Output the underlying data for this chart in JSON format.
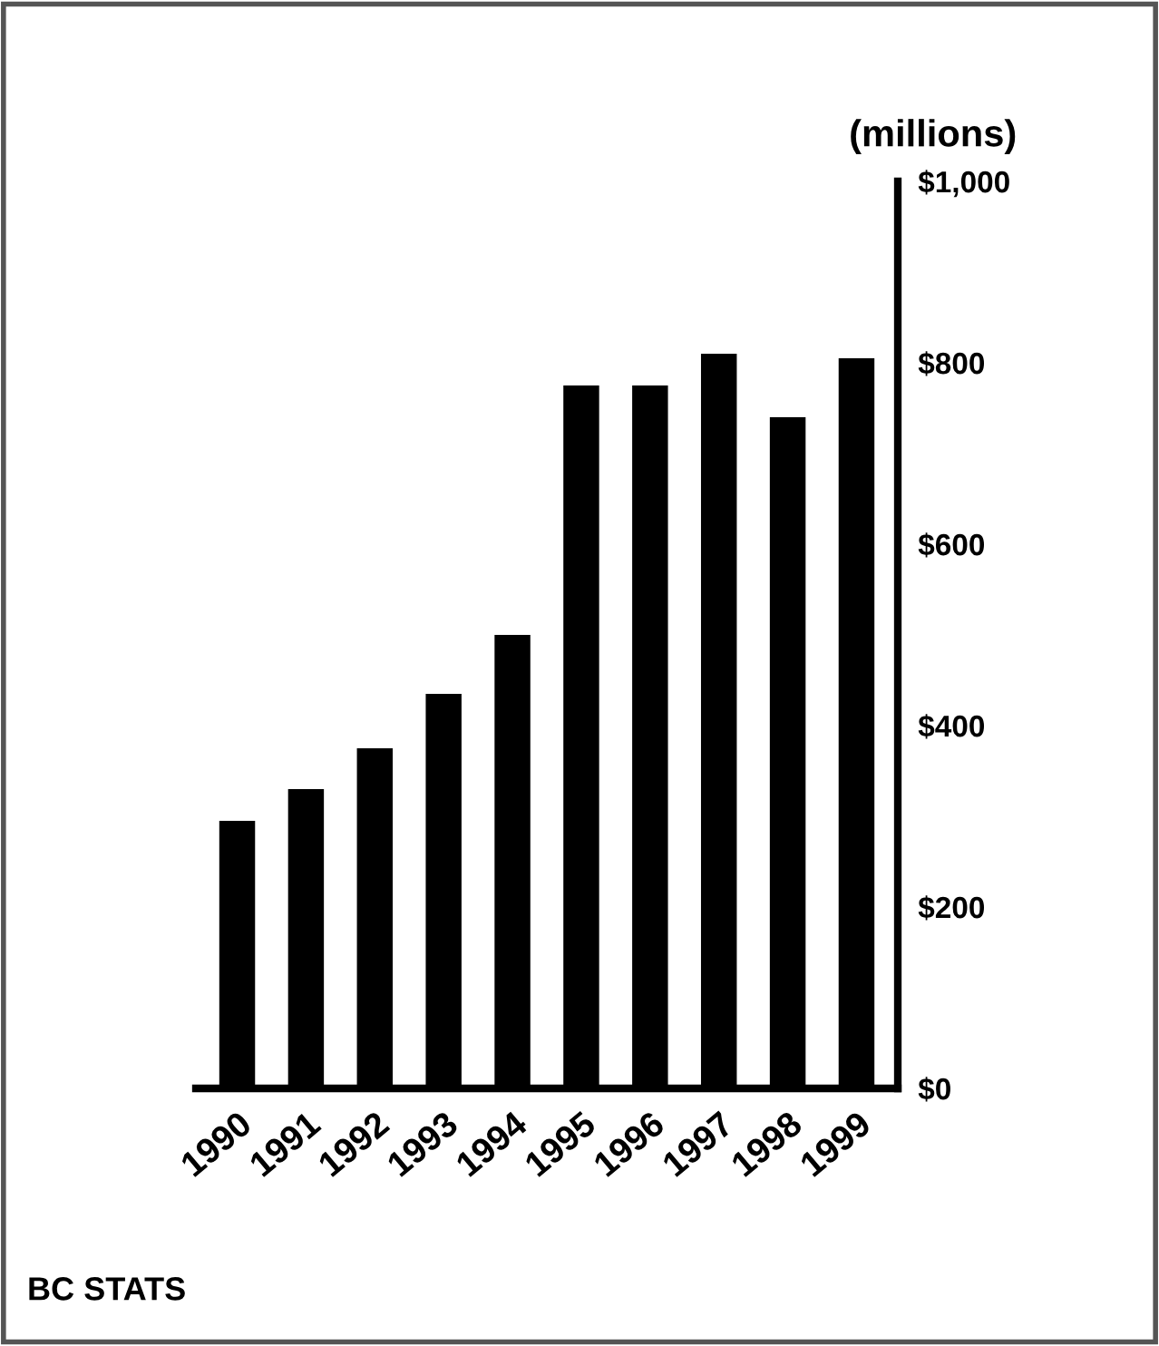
{
  "chart_data": {
    "type": "bar",
    "ylabel": "(millions)",
    "categories": [
      "1990",
      "1991",
      "1992",
      "1993",
      "1994",
      "1995",
      "1996",
      "1997",
      "1998",
      "1999"
    ],
    "values": [
      295,
      330,
      375,
      435,
      500,
      775,
      775,
      810,
      740,
      805
    ],
    "color": "#000000",
    "ylim": [
      0,
      1000
    ],
    "yticks": [
      {
        "value": 0,
        "label": "$0"
      },
      {
        "value": 200,
        "label": "$200"
      },
      {
        "value": 400,
        "label": "$400"
      },
      {
        "value": 600,
        "label": "$600"
      },
      {
        "value": 800,
        "label": "$800"
      },
      {
        "value": 1000,
        "label": "$1,000"
      }
    ],
    "grid": false,
    "annotations": [
      "BC STATS"
    ]
  }
}
